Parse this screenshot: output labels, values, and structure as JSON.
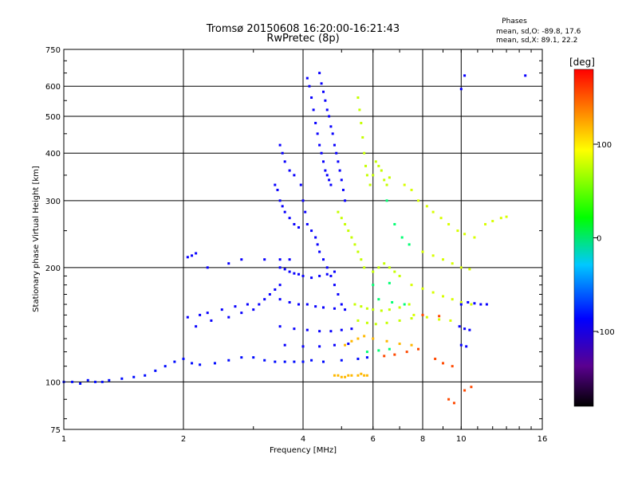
{
  "chart_data": {
    "type": "scatter",
    "title": "Tromsø 20150608 16:20:00-16:21:43",
    "subtitle": "RwPretec (8p)",
    "xlabel": "Frequency [MHz]",
    "ylabel": "Stationary phase Virtual Height [km]",
    "x_scale": "log",
    "y_scale": "log",
    "xlim": [
      1,
      16
    ],
    "ylim": [
      75,
      750
    ],
    "x_ticks": [
      1,
      2,
      4,
      6,
      8,
      10,
      16
    ],
    "x_tick_labels": [
      "1",
      "2",
      "4",
      "6",
      "8",
      "10",
      "16"
    ],
    "y_ticks": [
      75,
      100,
      200,
      300,
      400,
      500,
      600,
      750
    ],
    "y_tick_labels": [
      "75",
      "100",
      "200",
      "300",
      "400",
      "500",
      "600",
      "750"
    ],
    "grid": true,
    "stats": {
      "heading": "Phases",
      "o_line": "mean, sd,O: -89.8, 17.6",
      "x_line": "mean, sd,X:  89.1, 22.2"
    },
    "colorbar": {
      "label": "[deg]",
      "range": [
        -180,
        180
      ],
      "tick_values": [
        100,
        0,
        -100
      ],
      "tick_labels": [
        "100",
        "0",
        "-100"
      ],
      "colormap": "rainbow (black→purple→blue→cyan→green→yellow→orange→red)"
    },
    "series": [
      {
        "phase_deg": -95,
        "points": [
          [
            1,
            100
          ],
          [
            1.05,
            100
          ],
          [
            1.1,
            99
          ],
          [
            1.15,
            101
          ],
          [
            1.2,
            100
          ],
          [
            1.25,
            100
          ],
          [
            1.3,
            101
          ],
          [
            1.4,
            102
          ],
          [
            1.5,
            103
          ],
          [
            1.6,
            104
          ],
          [
            1.7,
            107
          ],
          [
            1.8,
            110
          ],
          [
            1.9,
            113
          ],
          [
            2.0,
            115
          ],
          [
            2.1,
            112
          ],
          [
            2.2,
            111
          ],
          [
            2.4,
            112
          ],
          [
            2.6,
            114
          ],
          [
            2.8,
            116
          ],
          [
            3.0,
            116
          ],
          [
            3.2,
            114
          ],
          [
            3.4,
            113
          ],
          [
            3.6,
            113
          ],
          [
            3.8,
            113
          ],
          [
            4.0,
            113
          ],
          [
            4.2,
            114
          ],
          [
            4.5,
            113
          ],
          [
            5.0,
            114
          ],
          [
            5.5,
            115
          ],
          [
            5.8,
            116
          ]
        ]
      },
      {
        "phase_deg": -100,
        "points": [
          [
            2.05,
            148
          ],
          [
            2.2,
            150
          ],
          [
            2.3,
            152
          ],
          [
            2.5,
            155
          ],
          [
            2.7,
            158
          ],
          [
            2.9,
            160
          ],
          [
            2.15,
            140
          ],
          [
            2.35,
            145
          ],
          [
            2.6,
            148
          ],
          [
            2.8,
            152
          ],
          [
            3.0,
            155
          ],
          [
            3.1,
            160
          ],
          [
            3.2,
            165
          ],
          [
            3.3,
            170
          ],
          [
            3.4,
            175
          ],
          [
            3.5,
            180
          ],
          [
            2.05,
            213
          ],
          [
            2.1,
            215
          ],
          [
            2.15,
            218
          ],
          [
            2.3,
            200
          ],
          [
            2.6,
            205
          ],
          [
            2.8,
            210
          ],
          [
            3.2,
            210
          ],
          [
            3.5,
            210
          ],
          [
            3.7,
            210
          ]
        ]
      },
      {
        "phase_deg": -100,
        "points": [
          [
            3.4,
            330
          ],
          [
            3.45,
            320
          ],
          [
            3.5,
            300
          ],
          [
            3.55,
            290
          ],
          [
            3.6,
            280
          ],
          [
            3.7,
            270
          ],
          [
            3.8,
            260
          ],
          [
            3.9,
            255
          ],
          [
            3.5,
            420
          ],
          [
            3.55,
            400
          ],
          [
            3.6,
            380
          ],
          [
            3.7,
            360
          ],
          [
            3.8,
            350
          ],
          [
            3.95,
            330
          ],
          [
            4.0,
            300
          ],
          [
            4.05,
            280
          ],
          [
            4.1,
            260
          ],
          [
            4.2,
            250
          ],
          [
            4.3,
            240
          ],
          [
            4.35,
            230
          ],
          [
            4.4,
            220
          ],
          [
            4.5,
            210
          ],
          [
            4.6,
            200
          ],
          [
            4.7,
            190
          ],
          [
            4.8,
            180
          ],
          [
            4.9,
            170
          ],
          [
            5.0,
            160
          ]
        ]
      },
      {
        "phase_deg": -100,
        "points": [
          [
            4.1,
            630
          ],
          [
            4.15,
            600
          ],
          [
            4.2,
            560
          ],
          [
            4.25,
            520
          ],
          [
            4.3,
            480
          ],
          [
            4.35,
            450
          ],
          [
            4.4,
            420
          ],
          [
            4.45,
            400
          ],
          [
            4.5,
            380
          ],
          [
            4.55,
            360
          ],
          [
            4.6,
            350
          ],
          [
            4.65,
            340
          ],
          [
            4.7,
            330
          ],
          [
            4.4,
            650
          ],
          [
            4.45,
            610
          ],
          [
            4.5,
            580
          ],
          [
            4.55,
            550
          ],
          [
            4.6,
            520
          ],
          [
            4.65,
            500
          ],
          [
            4.7,
            470
          ],
          [
            4.75,
            450
          ],
          [
            4.8,
            420
          ],
          [
            4.85,
            400
          ],
          [
            4.9,
            380
          ],
          [
            4.95,
            360
          ],
          [
            5.0,
            340
          ],
          [
            5.05,
            320
          ],
          [
            5.1,
            300
          ]
        ]
      },
      {
        "phase_deg": -100,
        "points": [
          [
            3.5,
            200
          ],
          [
            3.6,
            198
          ],
          [
            3.7,
            195
          ],
          [
            3.8,
            193
          ],
          [
            3.9,
            192
          ],
          [
            4.0,
            190
          ],
          [
            4.2,
            188
          ],
          [
            4.4,
            190
          ],
          [
            4.6,
            192
          ],
          [
            4.8,
            195
          ],
          [
            3.5,
            165
          ],
          [
            3.7,
            162
          ],
          [
            3.9,
            160
          ],
          [
            4.1,
            160
          ],
          [
            4.3,
            158
          ],
          [
            4.5,
            157
          ],
          [
            4.8,
            156
          ],
          [
            5.1,
            155
          ],
          [
            3.5,
            140
          ],
          [
            3.8,
            138
          ],
          [
            4.1,
            137
          ],
          [
            4.4,
            136
          ],
          [
            4.7,
            136
          ],
          [
            5.0,
            137
          ],
          [
            5.3,
            138
          ],
          [
            3.6,
            125
          ],
          [
            4.0,
            124
          ],
          [
            4.4,
            124
          ],
          [
            4.8,
            125
          ],
          [
            5.2,
            126
          ]
        ]
      },
      {
        "phase_deg": 95,
        "points": [
          [
            4.9,
            280
          ],
          [
            5.0,
            270
          ],
          [
            5.1,
            260
          ],
          [
            5.2,
            250
          ],
          [
            5.3,
            240
          ],
          [
            5.4,
            230
          ],
          [
            5.5,
            220
          ],
          [
            5.6,
            210
          ],
          [
            5.7,
            200
          ],
          [
            5.5,
            560
          ],
          [
            5.55,
            520
          ],
          [
            5.6,
            480
          ],
          [
            5.65,
            440
          ],
          [
            5.7,
            400
          ],
          [
            5.75,
            370
          ],
          [
            5.8,
            350
          ],
          [
            5.9,
            330
          ],
          [
            6.0,
            350
          ],
          [
            6.1,
            380
          ],
          [
            6.2,
            370
          ],
          [
            6.3,
            360
          ],
          [
            6.4,
            340
          ],
          [
            6.5,
            330
          ],
          [
            6.6,
            345
          ],
          [
            6.0,
            195
          ],
          [
            6.2,
            200
          ],
          [
            6.4,
            205
          ],
          [
            6.6,
            200
          ],
          [
            6.8,
            195
          ],
          [
            7.0,
            190
          ],
          [
            5.4,
            160
          ],
          [
            5.6,
            158
          ],
          [
            5.8,
            156
          ],
          [
            6.0,
            155
          ],
          [
            6.3,
            154
          ],
          [
            6.6,
            155
          ],
          [
            7.0,
            157
          ],
          [
            7.4,
            160
          ],
          [
            5.5,
            145
          ],
          [
            5.8,
            143
          ],
          [
            6.1,
            142
          ],
          [
            6.5,
            143
          ],
          [
            7.0,
            145
          ],
          [
            7.5,
            147
          ]
        ]
      },
      {
        "phase_deg": 130,
        "points": [
          [
            4.8,
            104
          ],
          [
            4.9,
            104
          ],
          [
            5.0,
            103
          ],
          [
            5.1,
            103
          ],
          [
            5.2,
            104
          ],
          [
            5.3,
            104
          ],
          [
            5.5,
            104
          ],
          [
            5.6,
            105
          ],
          [
            5.7,
            104
          ],
          [
            5.8,
            104
          ],
          [
            5.1,
            125
          ],
          [
            5.3,
            128
          ],
          [
            5.5,
            130
          ],
          [
            5.7,
            132
          ],
          [
            6.0,
            130
          ],
          [
            6.5,
            128
          ],
          [
            7.0,
            126
          ],
          [
            7.5,
            125
          ]
        ]
      },
      {
        "phase_deg": 100,
        "points": [
          [
            7.2,
            330
          ],
          [
            7.5,
            320
          ],
          [
            7.8,
            300
          ],
          [
            8.2,
            290
          ],
          [
            8.5,
            280
          ],
          [
            8.9,
            270
          ],
          [
            9.3,
            260
          ],
          [
            9.8,
            250
          ],
          [
            10.2,
            245
          ],
          [
            10.8,
            240
          ],
          [
            11.5,
            260
          ],
          [
            12.0,
            265
          ],
          [
            12.6,
            270
          ],
          [
            13.0,
            272
          ],
          [
            8.0,
            220
          ],
          [
            8.5,
            215
          ],
          [
            9.0,
            210
          ],
          [
            9.5,
            205
          ],
          [
            10.0,
            200
          ],
          [
            10.5,
            198
          ],
          [
            7.5,
            180
          ],
          [
            8.0,
            176
          ],
          [
            8.5,
            172
          ],
          [
            9.0,
            168
          ],
          [
            9.5,
            165
          ],
          [
            10.0,
            162
          ],
          [
            10.6,
            160
          ],
          [
            7.6,
            150
          ],
          [
            8.2,
            148
          ],
          [
            8.8,
            146
          ],
          [
            9.4,
            145
          ]
        ]
      },
      {
        "phase_deg": -100,
        "points": [
          [
            10.0,
            160
          ],
          [
            10.4,
            162
          ],
          [
            10.8,
            161
          ],
          [
            11.2,
            160
          ],
          [
            11.6,
            160
          ],
          [
            9.9,
            140
          ],
          [
            10.2,
            138
          ],
          [
            10.5,
            137
          ],
          [
            10.0,
            125
          ],
          [
            10.3,
            124
          ],
          [
            14.5,
            640
          ],
          [
            10.2,
            640
          ],
          [
            10.0,
            590
          ]
        ]
      },
      {
        "phase_deg": 10,
        "points": [
          [
            6.5,
            300
          ],
          [
            6.8,
            260
          ],
          [
            7.1,
            240
          ],
          [
            7.4,
            230
          ],
          [
            6.2,
            165
          ],
          [
            6.7,
            162
          ],
          [
            7.2,
            160
          ],
          [
            6.0,
            180
          ],
          [
            6.6,
            182
          ],
          [
            5.8,
            120
          ],
          [
            6.2,
            121
          ],
          [
            6.6,
            122
          ]
        ]
      },
      {
        "phase_deg": 160,
        "points": [
          [
            6.4,
            117
          ],
          [
            6.8,
            118
          ],
          [
            7.3,
            120
          ],
          [
            7.8,
            122
          ],
          [
            8.6,
            115
          ],
          [
            9.0,
            112
          ],
          [
            9.5,
            110
          ],
          [
            8.0,
            150
          ],
          [
            8.8,
            149
          ],
          [
            9.3,
            90
          ],
          [
            9.6,
            88
          ],
          [
            10.2,
            95
          ],
          [
            10.6,
            97
          ]
        ]
      }
    ]
  }
}
